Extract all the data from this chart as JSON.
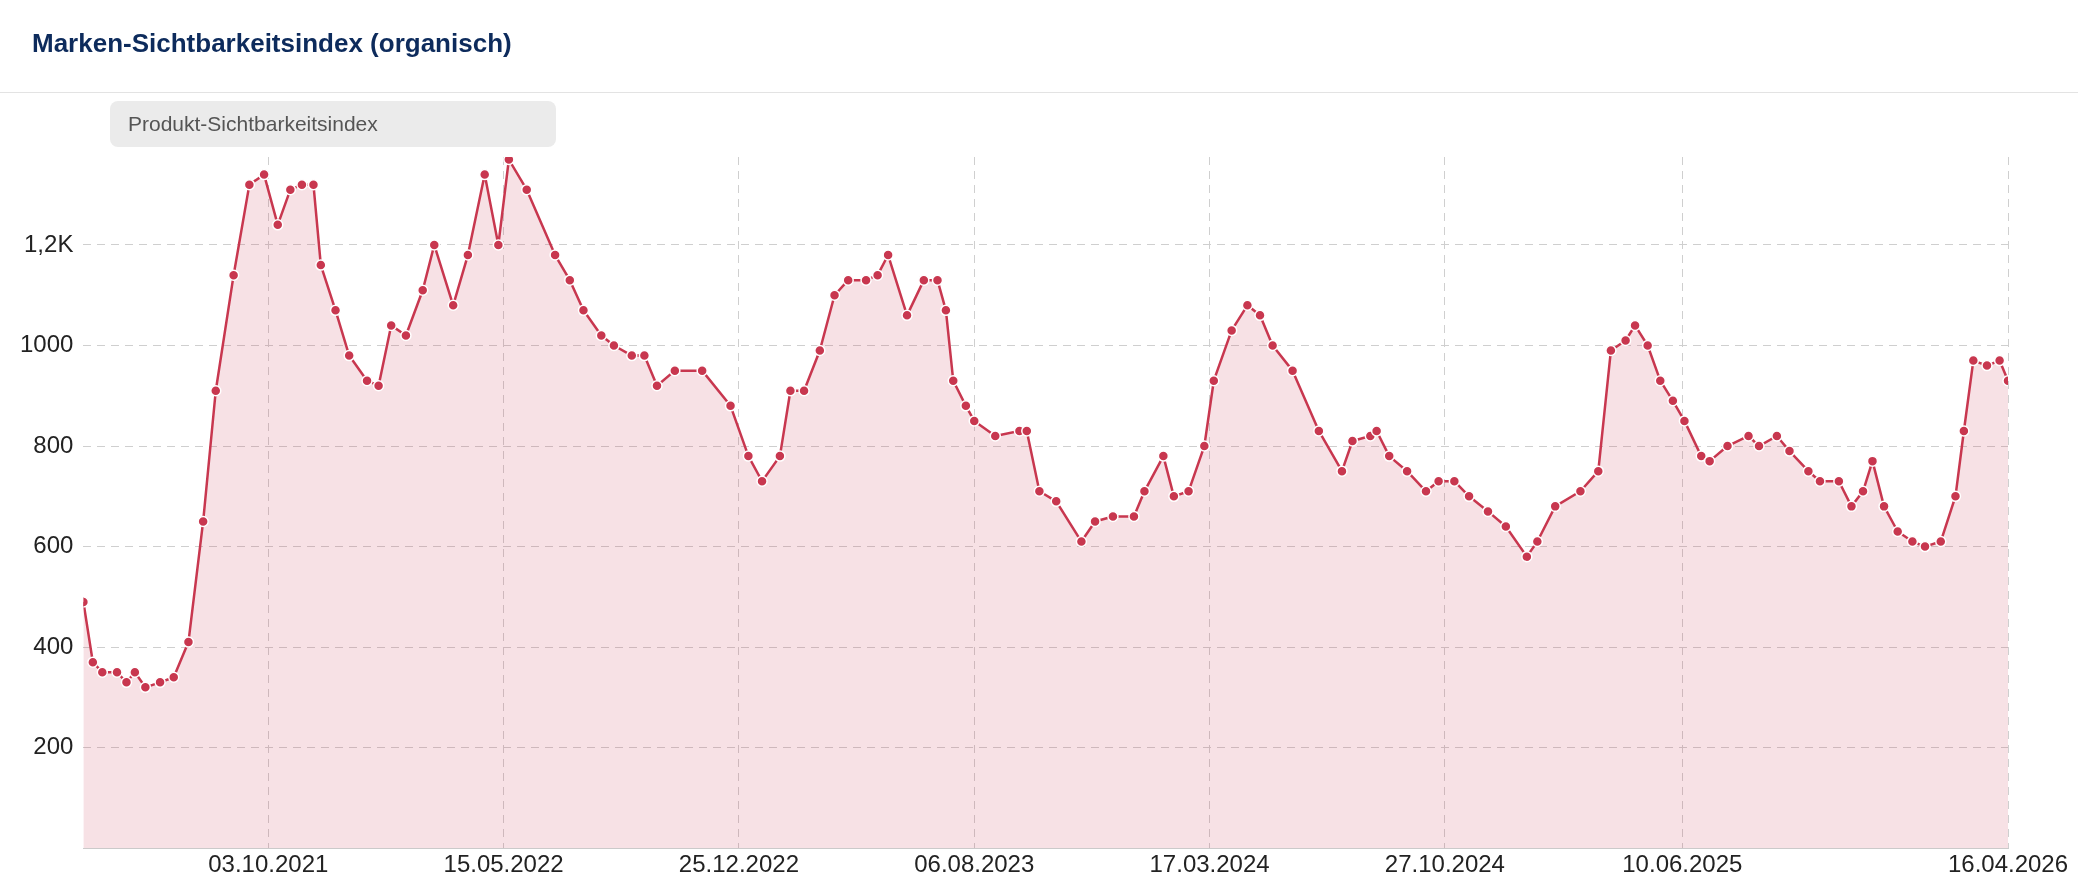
{
  "chart_data": {
    "type": "area",
    "title": "Marken-Sichtbarkeitsindex (organisch)",
    "annotations": [
      "Produkt-Sichtbarkeitsindex"
    ],
    "x": [
      "2021-04-10",
      "2021-04-19",
      "2021-04-28",
      "2021-05-12",
      "2021-05-21",
      "2021-05-29",
      "2021-06-08",
      "2021-06-22",
      "2021-07-05",
      "2021-07-19",
      "2021-08-02",
      "2021-08-14",
      "2021-08-31",
      "2021-09-15",
      "2021-09-29",
      "2021-10-12",
      "2021-10-24",
      "2021-11-04",
      "2021-11-15",
      "2021-11-22",
      "2021-12-06",
      "2021-12-19",
      "2022-01-05",
      "2022-01-16",
      "2022-01-28",
      "2022-02-11",
      "2022-02-27",
      "2022-03-10",
      "2022-03-28",
      "2022-04-11",
      "2022-04-27",
      "2022-05-10",
      "2022-05-20",
      "2022-06-06",
      "2022-07-03",
      "2022-07-17",
      "2022-07-30",
      "2022-08-16",
      "2022-08-28",
      "2022-09-14",
      "2022-09-26",
      "2022-10-08",
      "2022-10-25",
      "2022-11-20",
      "2022-12-17",
      "2023-01-03",
      "2023-01-16",
      "2023-02-02",
      "2023-02-12",
      "2023-02-25",
      "2023-03-12",
      "2023-03-26",
      "2023-04-08",
      "2023-04-25",
      "2023-05-06",
      "2023-05-16",
      "2023-06-03",
      "2023-06-19",
      "2023-07-02",
      "2023-07-10",
      "2023-07-17",
      "2023-07-29",
      "2023-08-06",
      "2023-08-26",
      "2023-09-18",
      "2023-09-25",
      "2023-10-07",
      "2023-10-23",
      "2023-11-16",
      "2023-11-29",
      "2023-12-16",
      "2024-01-05",
      "2024-01-15",
      "2024-02-02",
      "2024-02-12",
      "2024-02-26",
      "2024-03-12",
      "2024-03-21",
      "2024-04-07",
      "2024-04-22",
      "2024-05-04",
      "2024-05-16",
      "2024-06-04",
      "2024-06-29",
      "2024-07-21",
      "2024-07-31",
      "2024-08-17",
      "2024-08-23",
      "2024-09-04",
      "2024-09-21",
      "2024-10-09",
      "2024-10-21",
      "2024-11-05",
      "2024-11-19",
      "2024-12-07",
      "2024-12-24",
      "2025-01-13",
      "2025-01-23",
      "2025-02-09",
      "2025-03-05",
      "2025-03-22",
      "2025-04-03",
      "2025-04-17",
      "2025-04-26",
      "2025-05-08",
      "2025-05-20",
      "2025-06-01",
      "2025-06-12",
      "2025-06-28",
      "2025-07-06",
      "2025-07-23",
      "2025-08-12",
      "2025-08-22",
      "2025-09-08",
      "2025-09-20",
      "2025-10-08",
      "2025-10-19",
      "2025-11-06",
      "2025-11-18",
      "2025-11-29",
      "2025-12-08",
      "2025-12-19",
      "2026-01-01",
      "2026-01-15",
      "2026-01-27",
      "2026-02-11",
      "2026-02-25",
      "2026-03-05",
      "2026-03-14",
      "2026-03-27",
      "2026-04-08",
      "2026-04-16"
    ],
    "series": [
      {
        "color": "#c8374f",
        "values": [
          490,
          370,
          350,
          350,
          330,
          350,
          320,
          330,
          340,
          410,
          650,
          910,
          1140,
          1320,
          1340,
          1240,
          1310,
          1320,
          1320,
          1160,
          1070,
          980,
          930,
          920,
          1040,
          1020,
          1110,
          1200,
          1080,
          1180,
          1340,
          1200,
          1370,
          1310,
          1180,
          1130,
          1070,
          1020,
          1000,
          980,
          980,
          920,
          950,
          950,
          880,
          780,
          730,
          780,
          910,
          910,
          990,
          1100,
          1130,
          1130,
          1140,
          1180,
          1060,
          1130,
          1130,
          1070,
          930,
          880,
          850,
          820,
          830,
          830,
          710,
          690,
          610,
          650,
          660,
          660,
          710,
          780,
          700,
          710,
          800,
          930,
          1030,
          1080,
          1060,
          1000,
          950,
          830,
          750,
          810,
          820,
          830,
          780,
          750,
          710,
          730,
          730,
          700,
          670,
          640,
          580,
          610,
          680,
          710,
          750,
          990,
          1010,
          1040,
          1000,
          930,
          890,
          850,
          780,
          770,
          800,
          820,
          800,
          820,
          790,
          750,
          730,
          730,
          680,
          710,
          770,
          680,
          630,
          610,
          600,
          610,
          700,
          830,
          970,
          960,
          970,
          930
        ]
      }
    ],
    "xlim": [
      "2021-04-10",
      "2026-04-16"
    ],
    "xticks": [
      {
        "value": "2021-10-03",
        "label": "03.10.2021"
      },
      {
        "value": "2022-05-15",
        "label": "15.05.2022"
      },
      {
        "value": "2022-12-25",
        "label": "25.12.2022"
      },
      {
        "value": "2023-08-06",
        "label": "06.08.2023"
      },
      {
        "value": "2024-03-17",
        "label": "17.03.2024"
      },
      {
        "value": "2024-10-27",
        "label": "27.10.2024"
      },
      {
        "value": "2025-06-10",
        "label": "10.06.2025"
      },
      {
        "value": "2026-04-16",
        "label": "16.04.2026"
      }
    ],
    "ylim": [
      0,
      1375
    ],
    "yticks": [
      200,
      400,
      600,
      800,
      1000,
      {
        "value": 1200,
        "label": "1,2K"
      }
    ],
    "grid": true,
    "legend": false,
    "marker": "circle",
    "line_style": "solid"
  }
}
